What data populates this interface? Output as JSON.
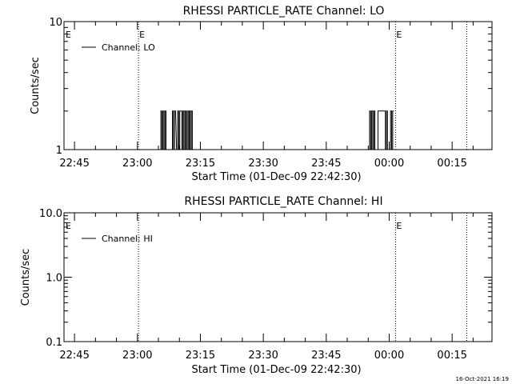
{
  "footer": {
    "timestamp": "16-Oct-2021 16:19"
  },
  "chart_data": [
    {
      "type": "line",
      "title": "RHESSI PARTICLE_RATE Channel: LO",
      "xlabel": "Start Time (01-Dec-09 22:42:30)",
      "ylabel": "Counts/sec",
      "yscale": "log",
      "ylim": [
        1,
        10
      ],
      "yticks": [
        "10",
        "1"
      ],
      "xlim": [
        "22:42:30",
        "00:24:30"
      ],
      "xticks": [
        "22:45",
        "23:00",
        "23:15",
        "23:30",
        "23:45",
        "00:00",
        "00:15"
      ],
      "grid": false,
      "legend": {
        "position": "top-left",
        "entries": [
          "Channel: LO"
        ]
      },
      "markers": [
        {
          "time": "23:00:15",
          "label": "E"
        },
        {
          "time": "00:01:30",
          "label": "E"
        },
        {
          "time": "00:18:30",
          "label": ""
        }
      ],
      "start_marker_label": "E",
      "series": [
        {
          "name": "Channel: LO",
          "x": [
            "23:05:20",
            "23:05:35",
            "23:05:50",
            "23:06:05",
            "23:06:20",
            "23:06:35",
            "23:06:50",
            "23:08:05",
            "23:08:20",
            "23:08:35",
            "23:08:50",
            "23:09:20",
            "23:09:35",
            "23:09:50",
            "23:10:05",
            "23:10:20",
            "23:10:35",
            "23:10:50",
            "23:11:05",
            "23:11:20",
            "23:11:35",
            "23:11:50",
            "23:12:05",
            "23:12:20",
            "23:12:35",
            "23:12:50",
            "23:13:05",
            "23:55:05",
            "23:55:20",
            "23:55:35",
            "23:55:50",
            "23:56:05",
            "23:56:20",
            "23:56:35",
            "23:57:05",
            "23:57:20",
            "23:57:35",
            "23:57:50",
            "23:58:05",
            "23:58:20",
            "23:58:35",
            "23:58:50",
            "23:59:05",
            "23:59:20",
            "23:59:35",
            "00:00:05",
            "00:00:20",
            "00:00:35",
            "00:00:50"
          ],
          "y": [
            1,
            2,
            1,
            2,
            1,
            2,
            1,
            1,
            2,
            1,
            2,
            1,
            2,
            1,
            2,
            2,
            1,
            2,
            1,
            2,
            1,
            2,
            1,
            2,
            1,
            2,
            1,
            1,
            2,
            1,
            2,
            1,
            2,
            1,
            1,
            2,
            2,
            2,
            2,
            2,
            2,
            2,
            1,
            2,
            1,
            1,
            2,
            1,
            2
          ]
        }
      ]
    },
    {
      "type": "line",
      "title": "RHESSI PARTICLE_RATE Channel: HI",
      "xlabel": "Start Time (01-Dec-09 22:42:30)",
      "ylabel": "Counts/sec",
      "yscale": "log",
      "ylim": [
        0.1,
        10
      ],
      "yticks": [
        "10.0",
        "1.0",
        "0.1"
      ],
      "xlim": [
        "22:42:30",
        "00:24:30"
      ],
      "xticks": [
        "22:45",
        "23:00",
        "23:15",
        "23:30",
        "23:45",
        "00:00",
        "00:15"
      ],
      "grid": false,
      "legend": {
        "position": "top-left",
        "entries": [
          "Channel: HI"
        ]
      },
      "markers": [
        {
          "time": "23:00:15",
          "label": ""
        },
        {
          "time": "00:01:30",
          "label": "E"
        },
        {
          "time": "00:18:30",
          "label": ""
        }
      ],
      "start_marker_label": "E",
      "series": [
        {
          "name": "Channel: HI",
          "x": [],
          "y": []
        }
      ]
    }
  ]
}
